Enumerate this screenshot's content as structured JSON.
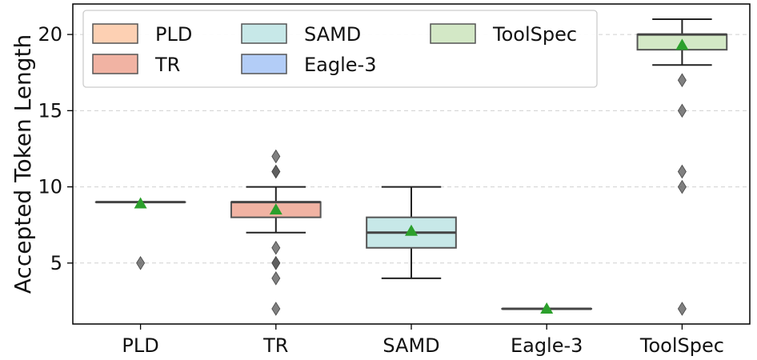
{
  "chart_data": {
    "type": "box",
    "title": "",
    "xlabel": "",
    "ylabel": "Accepted Token Length",
    "ylim": [
      1,
      22
    ],
    "yticks": [
      5,
      10,
      15,
      20
    ],
    "grid": "horizontal-dashed",
    "legend_placement": "top-left",
    "categories": [
      "PLD",
      "TR",
      "SAMD",
      "Eagle-3",
      "ToolSpec"
    ],
    "series": [
      {
        "name": "PLD",
        "color": "#fdd0b3",
        "q1": 9,
        "median": 9,
        "q3": 9,
        "whisker_low": 9,
        "whisker_high": 9,
        "mean": 8.9,
        "outliers": [
          5
        ]
      },
      {
        "name": "TR",
        "color": "#f1b3a3",
        "q1": 8,
        "median": 9,
        "q3": 9,
        "whisker_low": 7,
        "whisker_high": 10,
        "mean": 8.5,
        "outliers": [
          2,
          4,
          5,
          5,
          6,
          11,
          11,
          12
        ]
      },
      {
        "name": "SAMD",
        "color": "#c7e8e8",
        "q1": 6,
        "median": 7,
        "q3": 8,
        "whisker_low": 4,
        "whisker_high": 10,
        "mean": 7.1,
        "outliers": []
      },
      {
        "name": "Eagle-3",
        "color": "#b3cdf7",
        "q1": 2,
        "median": 2,
        "q3": 2,
        "whisker_low": 2,
        "whisker_high": 2,
        "mean": 2.0,
        "outliers": []
      },
      {
        "name": "ToolSpec",
        "color": "#d3e8c6",
        "q1": 19,
        "median": 20,
        "q3": 20,
        "whisker_low": 18,
        "whisker_high": 21,
        "mean": 19.3,
        "outliers": [
          2,
          10,
          11,
          15,
          17
        ]
      }
    ]
  }
}
